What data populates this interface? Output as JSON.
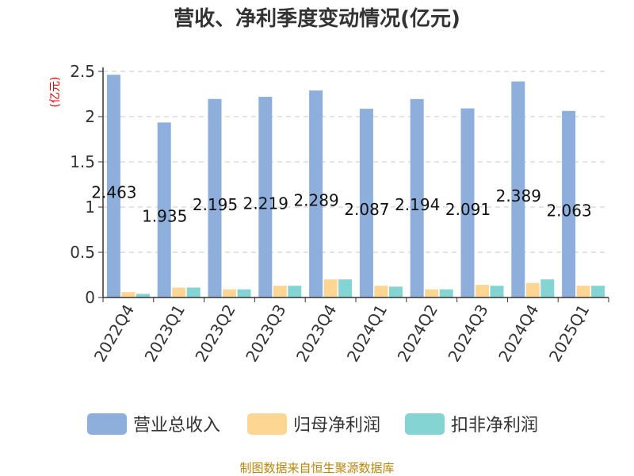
{
  "chart_data": {
    "type": "bar",
    "title": "营收、净利季度变动情况(亿元)",
    "ylabel": "(亿元)",
    "xlabel": "",
    "ylim": [
      0,
      2.5
    ],
    "yticks": [
      "0",
      "0.5",
      "1",
      "1.5",
      "2",
      "2.5"
    ],
    "categories": [
      "2022Q4",
      "2023Q1",
      "2023Q2",
      "2023Q3",
      "2023Q4",
      "2024Q1",
      "2024Q2",
      "2024Q3",
      "2024Q4",
      "2025Q1"
    ],
    "series": [
      {
        "name": "营业总收入",
        "color": "#8eafdb",
        "values": [
          2.463,
          1.935,
          2.195,
          2.219,
          2.289,
          2.087,
          2.194,
          2.091,
          2.389,
          2.063
        ]
      },
      {
        "name": "归母净利润",
        "color": "#fdd694",
        "values": [
          0.06,
          0.11,
          0.09,
          0.13,
          0.2,
          0.13,
          0.09,
          0.14,
          0.16,
          0.13
        ]
      },
      {
        "name": "扣非净利润",
        "color": "#84d4d4",
        "values": [
          0.04,
          0.11,
          0.09,
          0.13,
          0.2,
          0.12,
          0.09,
          0.13,
          0.2,
          0.13
        ]
      }
    ],
    "data_labels": [
      "2.463",
      "1.935",
      "2.195",
      "2.219",
      "2.289",
      "2.087",
      "2.194",
      "2.091",
      "2.389",
      "2.063"
    ],
    "grid": true,
    "legend_position": "bottom"
  },
  "source": "制图数据来自恒生聚源数据库"
}
